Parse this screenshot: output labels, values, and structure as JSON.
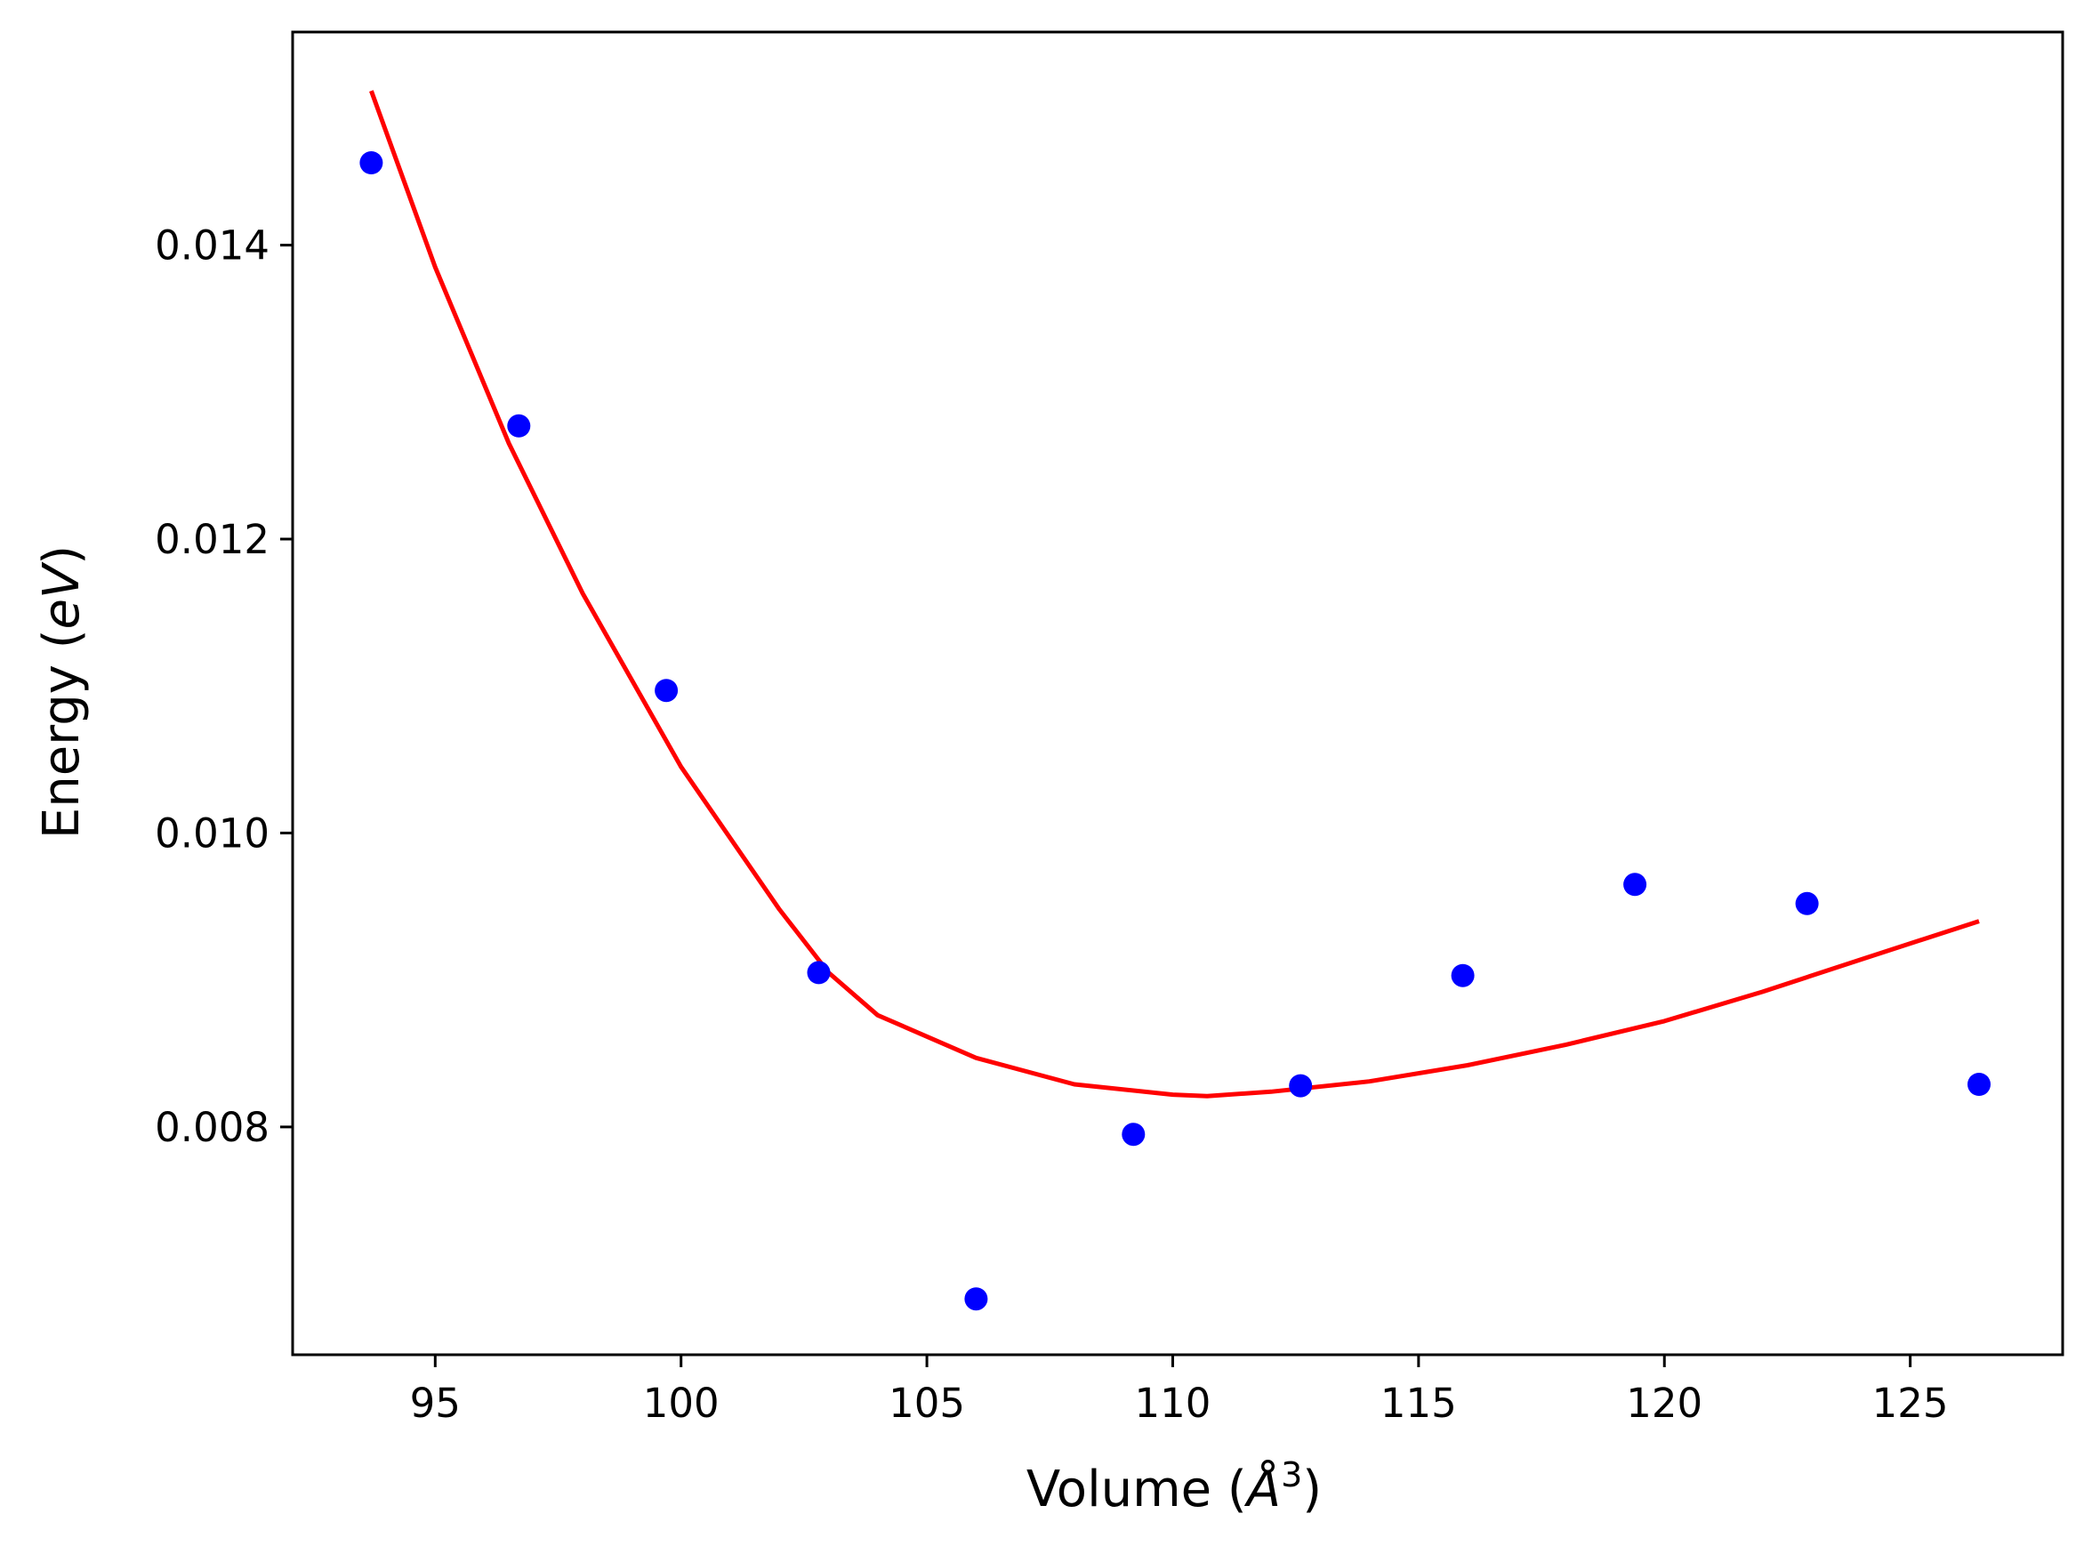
{
  "chart_data": {
    "type": "scatter",
    "title": "",
    "xlabel_parts": {
      "prefix": "Volume (",
      "symbol": "Å",
      "exponent": "3",
      "suffix": ")"
    },
    "ylabel_parts": {
      "prefix": "Energy (",
      "symbol": "eV",
      "suffix": ")"
    },
    "xlim": [
      92.1,
      128.1
    ],
    "ylim": [
      0.00645,
      0.01545
    ],
    "x_ticks": [
      95,
      100,
      105,
      110,
      115,
      120,
      125
    ],
    "x_tick_labels": [
      "95",
      "100",
      "105",
      "110",
      "115",
      "120",
      "125"
    ],
    "y_ticks": [
      0.008,
      0.01,
      0.012,
      0.014
    ],
    "y_tick_labels": [
      "0.008",
      "0.010",
      "0.012",
      "0.014"
    ],
    "grid": false,
    "series": [
      {
        "kind": "scatter",
        "color": "#0000ff",
        "x": [
          93.7,
          96.7,
          99.7,
          102.8,
          106.0,
          109.2,
          112.6,
          115.9,
          119.4,
          122.9,
          126.4
        ],
        "y": [
          0.01456,
          0.01277,
          0.01097,
          0.00905,
          0.00683,
          0.00795,
          0.00828,
          0.00903,
          0.00965,
          0.00952,
          0.00829
        ]
      },
      {
        "kind": "line",
        "color": "#ff0000",
        "x": [
          93.7,
          95.0,
          96.5,
          98.0,
          100.0,
          102.0,
          103.0,
          104.0,
          106.0,
          108.0,
          110.0,
          110.7,
          112.0,
          114.0,
          116.0,
          118.0,
          120.0,
          122.0,
          124.0,
          126.4
        ],
        "y": [
          0.01505,
          0.01385,
          0.01265,
          0.01163,
          0.01045,
          0.00948,
          0.00905,
          0.00876,
          0.00847,
          0.00829,
          0.00822,
          0.00821,
          0.00824,
          0.00831,
          0.00842,
          0.00856,
          0.00872,
          0.00892,
          0.00914,
          0.0094
        ]
      }
    ]
  }
}
